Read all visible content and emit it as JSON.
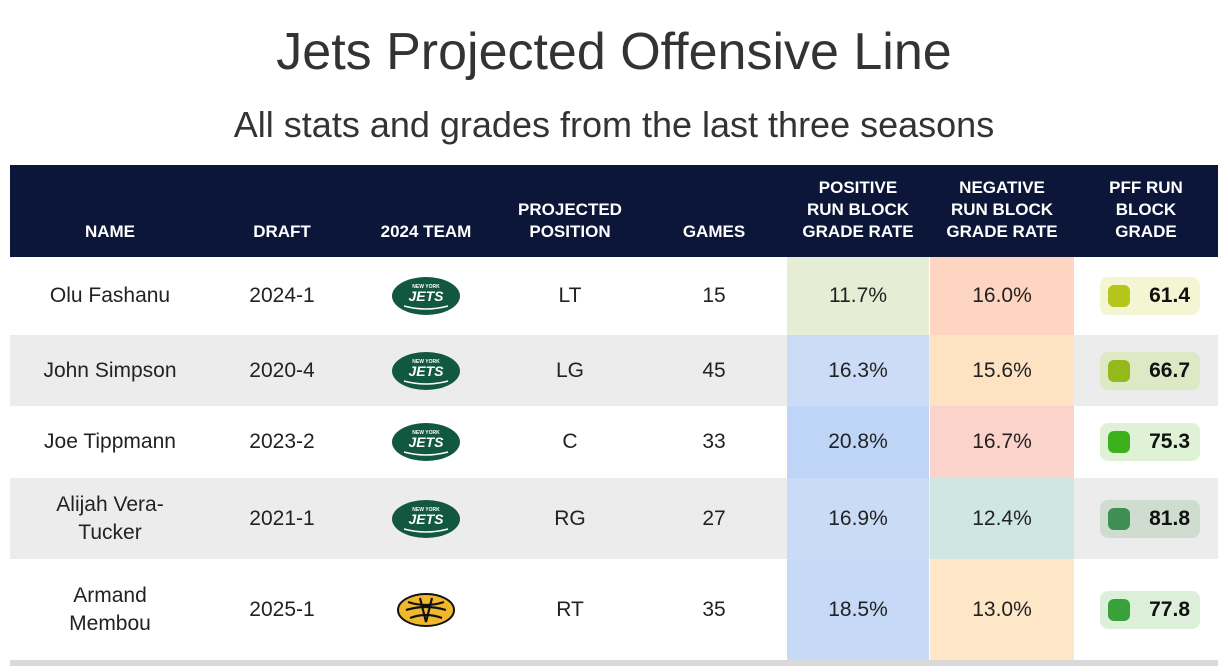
{
  "title": "Jets Projected Offensive Line",
  "subtitle": "All stats and grades from the last three seasons",
  "headers": {
    "name": "NAME",
    "draft": "DRAFT",
    "team": "2024 TEAM",
    "position_l1": "PROJECTED",
    "position_l2": "POSITION",
    "games": "GAMES",
    "pos_l1": "POSITIVE",
    "pos_l2": "RUN BLOCK",
    "pos_l3": "GRADE RATE",
    "neg_l1": "NEGATIVE",
    "neg_l2": "RUN BLOCK",
    "neg_l3": "GRADE RATE",
    "pff_l1": "PFF RUN",
    "pff_l2": "BLOCK",
    "pff_l3": "GRADE"
  },
  "chart_data": {
    "type": "table",
    "title": "Jets Projected Offensive Line",
    "subtitle": "All stats and grades from the last three seasons",
    "columns": [
      "NAME",
      "DRAFT",
      "2024 TEAM",
      "PROJECTED POSITION",
      "GAMES",
      "POSITIVE RUN BLOCK GRADE RATE",
      "NEGATIVE RUN BLOCK GRADE RATE",
      "PFF RUN BLOCK GRADE"
    ],
    "rows": [
      {
        "name_l1": "Olu Fashanu",
        "name_l2": "",
        "draft": "2024-1",
        "team": "jets-logo",
        "position": "LT",
        "games": "15",
        "pos_rate": "11.7%",
        "neg_rate": "16.0%",
        "grade": "61.4",
        "pos_color": "#e6edd5",
        "neg_color": "#fdd5c0",
        "grade_bg": "#f4f6d3",
        "grade_dot": "#b5c61b"
      },
      {
        "name_l1": "John Simpson",
        "name_l2": "",
        "draft": "2020-4",
        "team": "jets-logo",
        "position": "LG",
        "games": "45",
        "pos_rate": "16.3%",
        "neg_rate": "15.6%",
        "grade": "66.7",
        "pos_color": "#ccdcf6",
        "neg_color": "#fde3c2",
        "grade_bg": "#dde8c4",
        "grade_dot": "#93b91a"
      },
      {
        "name_l1": "Joe Tippmann",
        "name_l2": "",
        "draft": "2023-2",
        "team": "jets-logo",
        "position": "C",
        "games": "33",
        "pos_rate": "20.8%",
        "neg_rate": "16.7%",
        "grade": "75.3",
        "pos_color": "#bed5f8",
        "neg_color": "#fcd3cb",
        "grade_bg": "#dff2d6",
        "grade_dot": "#3cb11c"
      },
      {
        "name_l1": "Alijah Vera-",
        "name_l2": "Tucker",
        "draft": "2021-1",
        "team": "jets-logo",
        "position": "RG",
        "games": "27",
        "pos_rate": "16.9%",
        "neg_rate": "12.4%",
        "grade": "81.8",
        "pos_color": "#c9dbf6",
        "neg_color": "#d0e6e3",
        "grade_bg": "#cfdcd0",
        "grade_dot": "#3f8f52"
      },
      {
        "name_l1": "Armand",
        "name_l2": "Membou",
        "draft": "2025-1",
        "team": "mizzou-logo",
        "position": "RT",
        "games": "35",
        "pos_rate": "18.5%",
        "neg_rate": "13.0%",
        "grade": "77.8",
        "pos_color": "#c6d9f7",
        "neg_color": "#fde7c6",
        "grade_bg": "#dcefd9",
        "grade_dot": "#39a13a"
      }
    ]
  },
  "colors": {
    "header_bg": "#0b1638",
    "row_alt": "#ececec",
    "jets_green": "#125740",
    "mizzou_gold": "#f1b82d"
  }
}
